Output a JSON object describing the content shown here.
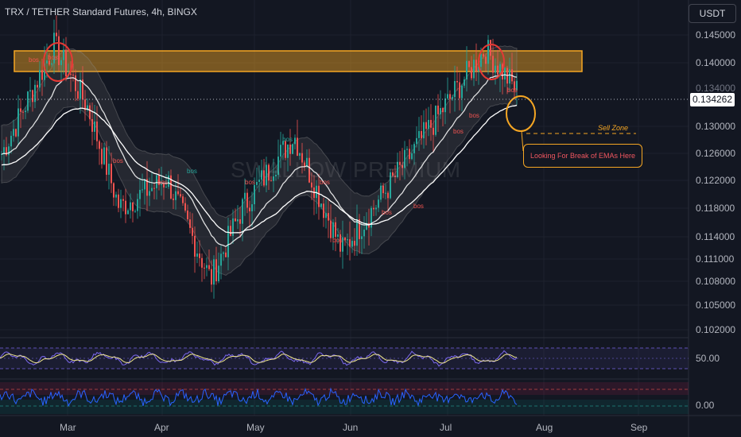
{
  "header": {
    "symbol_title": "TRX / TETHER Standard Futures, 4h, BINGX",
    "currency_button": "USDT"
  },
  "watermark": "SWALLOW PREMIUM",
  "price_axis": {
    "ticks": [
      "0.145000",
      "0.140000",
      "0.134262",
      "0.130000",
      "0.126000",
      "0.122000",
      "0.118000",
      "0.114000",
      "0.111000",
      "0.108000",
      "0.105000",
      "0.102000"
    ],
    "current_price": "0.134262"
  },
  "time_axis": {
    "ticks": [
      "Mar",
      "Apr",
      "May",
      "Jun",
      "Jul",
      "Aug",
      "Sep"
    ]
  },
  "annotations": {
    "sell_zone": "Sell Zone",
    "note": "Looking For Break of EMAs Here",
    "bos_label": "bos"
  },
  "oscillators": {
    "rsi_value": "50.00",
    "second_value": "0.00"
  },
  "colors": {
    "background": "#131722",
    "bull": "#26a69a",
    "bear": "#ef5350",
    "zone_fill": "#f5a623",
    "ema_line": "#ffffff",
    "circle_red": "#e53935",
    "circle_orange": "#f5a623",
    "rsi_line": "#7b68ee",
    "signal_line": "#f0e68c",
    "osc2_line": "#2962ff"
  },
  "chart_data": {
    "type": "candlestick",
    "symbol": "TRX / TETHER Standard Futures",
    "interval": "4h",
    "exchange": "BINGX",
    "price_range": [
      0.1005,
      0.1468
    ],
    "last_price": 0.134262,
    "price_path": [
      {
        "month": "Feb-end",
        "price": 0.125
      },
      {
        "month": "Mar",
        "price": 0.1405
      },
      {
        "month": "Mar-mid",
        "price": 0.132
      },
      {
        "month": "Mar-late",
        "price": 0.118
      },
      {
        "month": "Apr",
        "price": 0.122
      },
      {
        "month": "Apr-mid",
        "price": 0.108
      },
      {
        "month": "May",
        "price": 0.118
      },
      {
        "month": "May-mid",
        "price": 0.128
      },
      {
        "month": "Jun",
        "price": 0.112
      },
      {
        "month": "Jun-mid",
        "price": 0.118
      },
      {
        "month": "Jul",
        "price": 0.14
      },
      {
        "month": "Jul-late",
        "price": 0.134262
      }
    ],
    "resistance_zone": [
      0.1387,
      0.1423
    ]
  }
}
